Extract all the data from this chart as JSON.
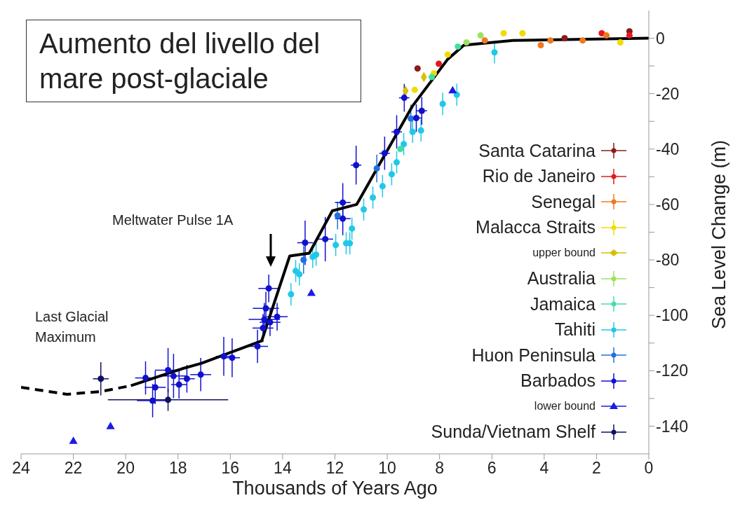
{
  "chart_data": {
    "type": "scatter",
    "title": "Aumento del livello del mare post-glaciale",
    "xlabel": "Thousands of Years Ago",
    "ylabel": "Sea Level Change (m)",
    "xlim": [
      24,
      0
    ],
    "xticks": [
      24,
      22,
      20,
      18,
      16,
      14,
      12,
      10,
      8,
      6,
      4,
      2,
      0
    ],
    "ylim": [
      -150,
      10
    ],
    "yticks": [
      -140,
      {
        "value": -130,
        "label": null
      },
      -120,
      {
        "value": -110,
        "label": null
      },
      -100,
      {
        "value": -90,
        "label": null
      },
      -80,
      {
        "value": -70,
        "label": null
      },
      -60,
      {
        "value": -50,
        "label": null
      },
      -40,
      {
        "value": -30,
        "label": null
      },
      -20,
      {
        "value": -10,
        "label": null
      },
      0
    ],
    "legend": "right",
    "annotations": [
      "Meltwater Pulse 1A",
      "Last Glacial\nMaximum"
    ],
    "series": [
      {
        "name": "Santa Catarina",
        "color": "#8b1a1a",
        "marker": "circle",
        "x": [
          8.84,
          3.22,
          0.74
        ],
        "values": [
          -10.9,
          0,
          2.5
        ]
      },
      {
        "name": "Rio de Janeiro",
        "color": "#e41a1c",
        "marker": "circle",
        "x": [
          8.03,
          1.8,
          0.74
        ],
        "values": [
          -9.2,
          1.8,
          1
        ]
      },
      {
        "name": "Senegal",
        "color": "#f07820",
        "marker": "circle",
        "x": [
          6.27,
          4.13,
          3.76,
          2.53,
          1.62
        ],
        "values": [
          -0.8,
          -2.5,
          -0.8,
          -0.8,
          1
        ]
      },
      {
        "name": "Malacca Straits",
        "color": "#f0dc00",
        "marker": "circle",
        "x": [
          8.95,
          8.22,
          7.69,
          5.55,
          4.83,
          1.09
        ],
        "values": [
          -18.6,
          -12.7,
          -5.9,
          1.8,
          1.8,
          -1.5
        ]
      },
      {
        "name": "upper bound",
        "color": "#d8c000",
        "marker": "diamond",
        "x": [
          9.3,
          8.6
        ],
        "values": [
          -19,
          -14
        ]
      },
      {
        "name": "Australia",
        "color": "#a0e060",
        "marker": "circle",
        "x": [
          6.97,
          6.43
        ],
        "values": [
          -1.5,
          1
        ]
      },
      {
        "name": "Jamaica",
        "color": "#40e0a0",
        "marker": "circle",
        "x": [
          9.5,
          8.3,
          7.3
        ],
        "values": [
          -40,
          -14,
          -3
        ]
      },
      {
        "name": "Tahiti",
        "color": "#20c8e8",
        "marker": "circle",
        "x": [
          13.68,
          13.5,
          13.36,
          12.85,
          12.72,
          11.97,
          11.57,
          11.43,
          11.35,
          10.9,
          10.55,
          10.18,
          9.83,
          9.64,
          9.37,
          9.03,
          8.71,
          7.88,
          7.34,
          5.9
        ],
        "values": [
          -92.4,
          -84,
          -85.2,
          -78.9,
          -78.1,
          -74.6,
          -74,
          -74,
          -68.7,
          -61.8,
          -57.5,
          -53.4,
          -49.1,
          -44.8,
          -38.2,
          -33.8,
          -33.3,
          -23.7,
          -20.4,
          -5.1
        ],
        "errors": [
          4,
          4,
          4,
          4,
          4,
          4,
          4,
          4,
          4,
          4,
          4,
          4,
          4,
          4,
          4,
          4,
          4,
          4,
          4,
          4
        ]
      },
      {
        "name": "Huon Peninsula",
        "color": "#2070e0",
        "marker": "circle",
        "x": [
          13.2,
          11.9,
          10.4,
          9.1
        ],
        "values": [
          -80,
          -64,
          -47,
          -29
        ],
        "errors": [
          5,
          5,
          5,
          5
        ]
      },
      {
        "name": "Barbados",
        "color": "#1010d0",
        "marker": "circle",
        "x": [
          19.24,
          18.87,
          18.97,
          18.38,
          18.17,
          17.96,
          17.66,
          17.13,
          16.25,
          15.93,
          14.96,
          14.53,
          14.64,
          14.7,
          14.48,
          14.21,
          14.75,
          13.14,
          12.37,
          11.7,
          11.7,
          11.19,
          10.1,
          9.64,
          9.35,
          8.89,
          8.68
        ],
        "values": [
          -122.6,
          -126,
          -130.8,
          -119.8,
          -121.9,
          -125,
          -122.9,
          -121.4,
          -114.8,
          -115.3,
          -111.2,
          -90.3,
          -97.5,
          -101.5,
          -102.5,
          -100.5,
          -104.6,
          -73.8,
          -72.5,
          -59.3,
          -65.1,
          -45.8,
          -41.5,
          -33.8,
          -21.5,
          -28.8,
          -26.2
        ],
        "errors": [
          6,
          6,
          6,
          8,
          8,
          5,
          5,
          6,
          7,
          7,
          6,
          5,
          6,
          6,
          5,
          5,
          5,
          8,
          8,
          7,
          6,
          7,
          6,
          6,
          5,
          5,
          5
        ],
        "xerrors": [
          0.4,
          0.4,
          0.6,
          0.5,
          0.5,
          0.3,
          0.3,
          0.4,
          0.3,
          0.3,
          0.4,
          0.4,
          0.5,
          0.6,
          0.4,
          0.4,
          0.4,
          0.3,
          0.3,
          0.3,
          0.3,
          0.2,
          0.2,
          0.2,
          0.2,
          0.2,
          0.2
        ]
      },
      {
        "name": "lower bound",
        "color": "#1a1ae8",
        "marker": "triangle",
        "x": [
          22,
          20.58,
          12.9,
          7.5
        ],
        "values": [
          -145.5,
          -140.2,
          -92.1,
          -19
        ]
      },
      {
        "name": "Sunda/Vietnam Shelf",
        "color": "#101060",
        "marker": "circle",
        "x": [
          20.95,
          18.38
        ],
        "values": [
          -122.9,
          -130.5
        ],
        "errors": [
          6,
          4
        ],
        "xerrors": [
          0.3,
          2.3
        ]
      },
      {
        "type": "line",
        "color": "#000000",
        "line_style": "dashed",
        "marker": "none",
        "x": [
          24,
          22.24,
          20.95,
          19.8
        ],
        "values": [
          -126,
          -128.5,
          -127.5,
          -125.4
        ]
      },
      {
        "type": "line",
        "color": "#000000",
        "line_style": "solid",
        "marker": "none",
        "x": [
          19.8,
          17.85,
          17.1,
          14.8,
          13.73,
          12.98,
          12.1,
          11.17,
          9.03,
          7.69,
          7.07,
          5.2,
          0
        ],
        "values": [
          -125.4,
          -119.3,
          -117.3,
          -109.2,
          -78.6,
          -77.6,
          -62.3,
          -60,
          -24.4,
          -7.6,
          -2.5,
          -0.8,
          0
        ]
      }
    ]
  }
}
